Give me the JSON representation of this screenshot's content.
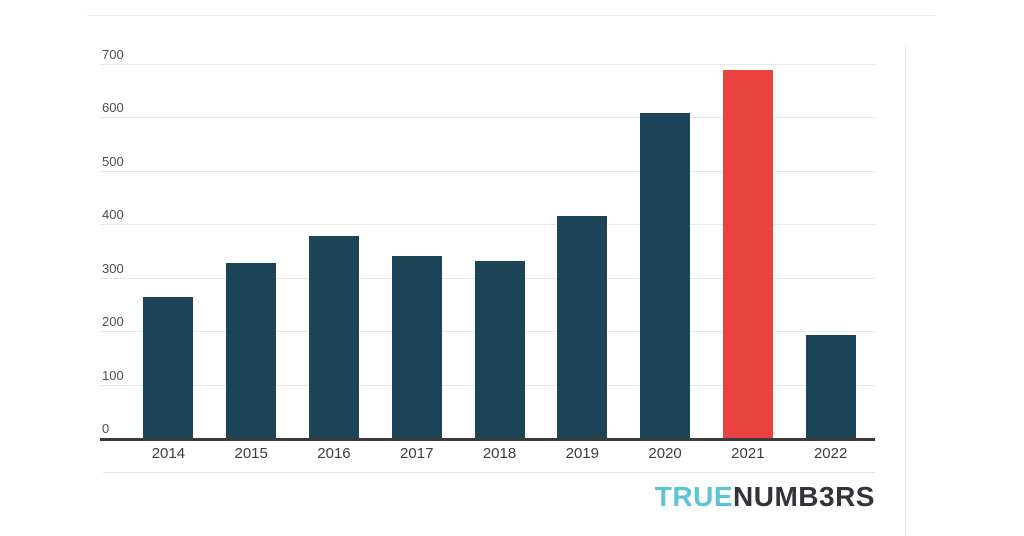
{
  "chart_data": {
    "type": "bar",
    "categories": [
      "2014",
      "2015",
      "2016",
      "2017",
      "2018",
      "2019",
      "2020",
      "2021",
      "2022"
    ],
    "values": [
      265,
      330,
      380,
      343,
      333,
      417,
      610,
      690,
      195
    ],
    "highlight_category": "2021",
    "highlight_index": 7,
    "title": "",
    "xlabel": "",
    "ylabel": "",
    "ylim": [
      0,
      700
    ],
    "ytick_step": 100,
    "ytick_labels": [
      "0",
      "100",
      "200",
      "300",
      "400",
      "500",
      "600",
      "700"
    ],
    "grid": true,
    "legend": "none",
    "bar_color": "#1d4357",
    "highlight_color": "#e8433f",
    "gridline_color": "#e9e9e9",
    "axis_color": "#3a3a3a",
    "y_label_color": "#4e4e4e",
    "x_label_color": "#3d3d3d"
  },
  "branding": {
    "logo_prefix": "TRUE",
    "logo_suffix": "NUMB3RS",
    "logo_prefix_color": "#5bc4d6",
    "logo_suffix_color": "#33333a"
  }
}
